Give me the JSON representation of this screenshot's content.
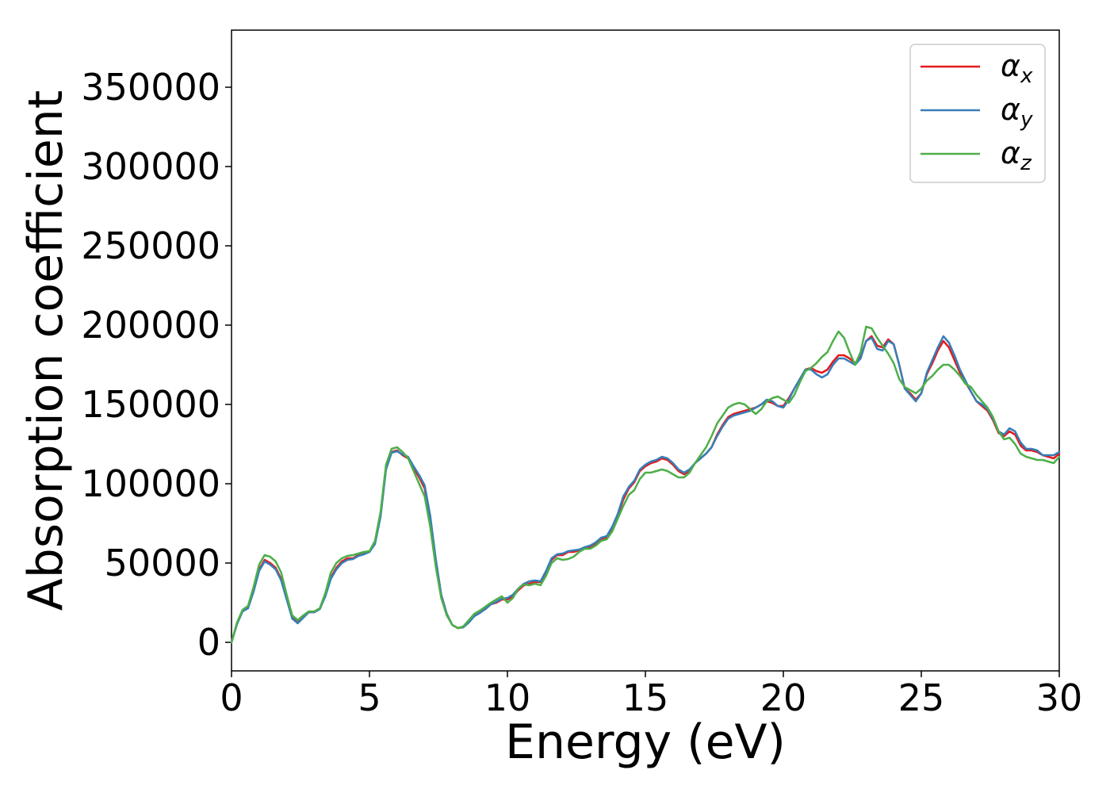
{
  "chart_data": {
    "type": "line",
    "xlabel": "Energy (eV)",
    "ylabel": "Absorption coefficient",
    "xlim": [
      0,
      30
    ],
    "ylim": [
      -18000,
      386000
    ],
    "x_ticks": [
      0,
      5,
      10,
      15,
      20,
      25,
      30
    ],
    "y_ticks": [
      0,
      50000,
      100000,
      150000,
      200000,
      250000,
      300000,
      350000
    ],
    "grid": false,
    "legend_position": "top-right",
    "x": [
      0,
      0.2,
      0.4,
      0.6,
      0.8,
      1.0,
      1.2,
      1.4,
      1.6,
      1.8,
      2.0,
      2.2,
      2.4,
      2.6,
      2.8,
      3.0,
      3.2,
      3.4,
      3.6,
      3.8,
      4.0,
      4.2,
      4.4,
      4.6,
      4.8,
      5.0,
      5.2,
      5.4,
      5.6,
      5.8,
      6.0,
      6.2,
      6.4,
      6.6,
      6.8,
      7.0,
      7.2,
      7.4,
      7.6,
      7.8,
      8.0,
      8.2,
      8.4,
      8.6,
      8.8,
      9.0,
      9.2,
      9.4,
      9.6,
      9.8,
      10.0,
      10.2,
      10.4,
      10.6,
      10.8,
      11.0,
      11.2,
      11.4,
      11.6,
      11.8,
      12.0,
      12.2,
      12.4,
      12.6,
      12.8,
      13.0,
      13.2,
      13.4,
      13.6,
      13.8,
      14.0,
      14.2,
      14.4,
      14.6,
      14.8,
      15.0,
      15.2,
      15.4,
      15.6,
      15.8,
      16.0,
      16.2,
      16.4,
      16.6,
      16.8,
      17.0,
      17.2,
      17.4,
      17.6,
      17.8,
      18.0,
      18.2,
      18.4,
      18.6,
      18.8,
      19.0,
      19.2,
      19.4,
      19.6,
      19.8,
      20.0,
      20.2,
      20.4,
      20.6,
      20.8,
      21.0,
      21.2,
      21.4,
      21.6,
      21.8,
      22.0,
      22.2,
      22.4,
      22.6,
      22.8,
      23.0,
      23.2,
      23.4,
      23.6,
      23.8,
      24.0,
      24.2,
      24.4,
      24.6,
      24.8,
      25.0,
      25.2,
      25.4,
      25.6,
      25.8,
      26.0,
      26.2,
      26.4,
      26.6,
      26.8,
      27.0,
      27.2,
      27.4,
      27.6,
      27.8,
      28.0,
      28.2,
      28.4,
      28.6,
      28.8,
      29.0,
      29.2,
      29.4,
      29.6,
      29.8,
      30.0
    ],
    "series": [
      {
        "name": "α_x",
        "color": "#e41a1c",
        "values": [
          0,
          12000,
          20000,
          22000,
          33000,
          46000,
          52000,
          50000,
          47000,
          40000,
          28000,
          16000,
          13000,
          16000,
          19000,
          19000,
          21000,
          30000,
          41000,
          47000,
          51000,
          53000,
          53000,
          55000,
          56000,
          57000,
          63000,
          80000,
          110000,
          120000,
          121000,
          118000,
          116000,
          110000,
          104000,
          97000,
          78000,
          52000,
          30000,
          18000,
          11000,
          9000,
          9500,
          13000,
          17000,
          19000,
          21000,
          24000,
          25000,
          27000,
          27000,
          29000,
          33000,
          36000,
          37000,
          38000,
          38000,
          44000,
          52000,
          55000,
          55000,
          57000,
          57000,
          58000,
          60000,
          60000,
          62000,
          65000,
          66000,
          72000,
          80000,
          90000,
          97000,
          101000,
          108000,
          111000,
          113000,
          114000,
          116000,
          115000,
          112000,
          108000,
          106000,
          108000,
          113000,
          116000,
          119000,
          123000,
          131000,
          137000,
          142000,
          144000,
          145000,
          146000,
          147000,
          148000,
          150000,
          152000,
          151000,
          149000,
          149000,
          154000,
          160000,
          166000,
          172000,
          173000,
          171000,
          170000,
          172000,
          177000,
          181000,
          181000,
          179000,
          176000,
          180000,
          190000,
          193000,
          187000,
          186000,
          191000,
          188000,
          175000,
          160000,
          157000,
          153000,
          157000,
          169000,
          176000,
          184000,
          190000,
          186000,
          178000,
          170000,
          164000,
          158000,
          152000,
          149000,
          146000,
          140000,
          132000,
          130000,
          133000,
          131000,
          124000,
          121000,
          121000,
          120000,
          118000,
          117000,
          116000,
          119000
        ]
      },
      {
        "name": "α_y",
        "color": "#377eb8",
        "values": [
          0,
          11500,
          19500,
          21500,
          32000,
          45000,
          51000,
          49000,
          46000,
          39000,
          27000,
          15000,
          12000,
          15500,
          19000,
          19000,
          21000,
          29000,
          40000,
          46000,
          50000,
          52000,
          52500,
          54500,
          55500,
          57000,
          62000,
          79000,
          109000,
          119500,
          120500,
          118500,
          117000,
          111000,
          105500,
          99000,
          80000,
          53000,
          30000,
          18000,
          11000,
          9000,
          9500,
          12500,
          16500,
          18500,
          21000,
          24000,
          25500,
          27500,
          28000,
          30000,
          34000,
          37000,
          38500,
          39000,
          38500,
          45000,
          53000,
          55500,
          56000,
          57500,
          58000,
          58500,
          60000,
          61000,
          63000,
          66000,
          67000,
          73000,
          81000,
          92000,
          98000,
          102000,
          109000,
          112000,
          114000,
          115000,
          117000,
          116000,
          113000,
          109000,
          107000,
          109000,
          113000,
          116000,
          119000,
          123000,
          130000,
          136000,
          141000,
          143000,
          144000,
          145000,
          146000,
          148000,
          150000,
          153000,
          152000,
          149000,
          148000,
          153000,
          160000,
          166000,
          172000,
          172000,
          169000,
          167000,
          169000,
          175000,
          179000,
          179000,
          177000,
          175000,
          179000,
          190000,
          192000,
          185000,
          184000,
          190000,
          188000,
          175000,
          160000,
          156000,
          152000,
          157000,
          170000,
          178000,
          186000,
          193000,
          189000,
          181000,
          172000,
          165000,
          158000,
          152000,
          150000,
          147000,
          141000,
          133000,
          131000,
          135000,
          133000,
          126000,
          122000,
          122000,
          121000,
          118000,
          118000,
          118000,
          120000
        ]
      },
      {
        "name": "α_z",
        "color": "#4daf4a",
        "values": [
          0,
          12500,
          20500,
          23000,
          35000,
          49000,
          55000,
          54000,
          51000,
          44000,
          30000,
          17000,
          14000,
          17000,
          19500,
          19500,
          21500,
          31000,
          44000,
          50000,
          53000,
          54500,
          55000,
          56000,
          57000,
          57500,
          64000,
          82000,
          112000,
          122000,
          123000,
          120000,
          116000,
          108000,
          100000,
          92000,
          73000,
          48000,
          28000,
          17000,
          11000,
          9000,
          10000,
          14000,
          18000,
          20000,
          22500,
          25000,
          27000,
          29000,
          25000,
          28000,
          34000,
          36500,
          36000,
          37000,
          36000,
          42000,
          50000,
          53000,
          52000,
          52500,
          54000,
          57000,
          59000,
          59000,
          61000,
          64000,
          65000,
          70000,
          78000,
          86000,
          93000,
          96000,
          103000,
          107000,
          107000,
          108000,
          109000,
          108000,
          106000,
          104000,
          104000,
          107000,
          113000,
          118000,
          123000,
          130000,
          138000,
          143000,
          148000,
          150000,
          151000,
          150000,
          147000,
          144000,
          147000,
          152000,
          154000,
          155000,
          153000,
          151000,
          156000,
          164000,
          171000,
          173000,
          176000,
          180000,
          183000,
          190000,
          196000,
          192000,
          183000,
          175000,
          183000,
          199000,
          198000,
          192000,
          187000,
          182000,
          176000,
          166000,
          161000,
          159000,
          157000,
          160000,
          165000,
          168000,
          172000,
          175000,
          175000,
          172000,
          168000,
          163000,
          161000,
          156000,
          152000,
          148000,
          142000,
          133000,
          128000,
          129000,
          125000,
          119000,
          117000,
          116000,
          115000,
          115000,
          114000,
          113000,
          117000
        ]
      }
    ]
  }
}
